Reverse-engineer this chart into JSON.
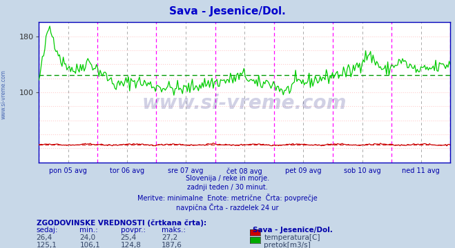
{
  "title": "Sava - Jesenice/Dol.",
  "title_color": "#0000cc",
  "bg_color": "#c8d8e8",
  "plot_bg_color": "#ffffff",
  "text_color": "#0000aa",
  "n_points": 336,
  "temp_avg": 25.4,
  "temp_min": 24.0,
  "temp_max": 27.2,
  "flow_avg": 124.8,
  "flow_min": 106.1,
  "flow_max": 187.6,
  "flow_color": "#00cc00",
  "temp_color": "#cc0000",
  "flow_avg_color": "#009900",
  "temp_avg_color": "#cc0000",
  "hgrid_color": "#ffcccc",
  "vline_day_color": "#ff00ff",
  "vline_half_color": "#aaaaaa",
  "yticks": [
    0,
    20,
    40,
    60,
    80,
    100,
    120,
    140,
    160,
    180,
    200
  ],
  "ytick_labels": [
    "100",
    "180"
  ],
  "ytick_values": [
    100,
    180
  ],
  "ymin": 0,
  "ymax": 200,
  "day_labels": [
    "pon 05 avg",
    "tor 06 avg",
    "sre 07 avg",
    "čet 08 avg",
    "pet 09 avg",
    "sob 10 avg",
    "ned 11 avg"
  ],
  "subtitle_lines": [
    "Slovenija / reke in morje.",
    "zadnji teden / 30 minut.",
    "Meritve: minimalne  Enote: metrične  Črta: povprečje",
    "navpična Črta - razdelek 24 ur"
  ],
  "footer_title": "ZGODOVINSKE VREDNOSTI (črtkana črta):",
  "footer_headers": [
    "sedaj:",
    "min.:",
    "povpr.:",
    "maks.:"
  ],
  "row_temp": [
    "26,4",
    "24,0",
    "25,4",
    "27,2"
  ],
  "row_flow": [
    "125,1",
    "106,1",
    "124,8",
    "187,6"
  ],
  "footer_station": "Sava - Jesenice/Dol.",
  "footer_legend": [
    "temperatura[C]",
    "pretok[m3/s]"
  ],
  "footer_legend_colors": [
    "#cc0000",
    "#00aa00"
  ],
  "watermark": "www.si-vreme.com",
  "sidebar_text": "www.si-vreme.com"
}
